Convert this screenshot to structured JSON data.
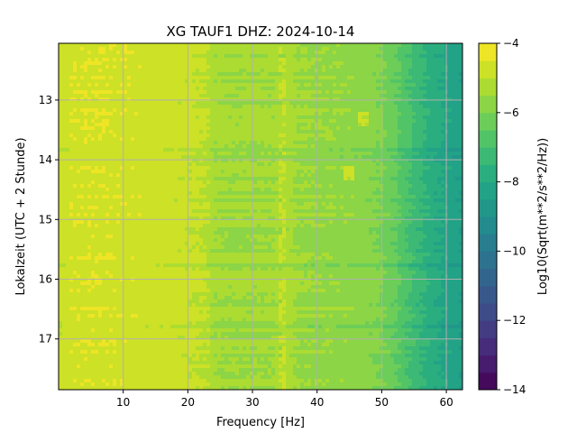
{
  "chart_data": {
    "type": "heatmap",
    "title": "XG TAUF1  DHZ: 2024-10-14",
    "xlabel": "Frequency [Hz]",
    "ylabel": "Lokalzeit (UTC + 2 Stunde)",
    "x_ticks": [
      10,
      20,
      30,
      40,
      50,
      60
    ],
    "y_ticks": [
      13,
      14,
      15,
      16,
      17
    ],
    "xlim": [
      0,
      62.5
    ],
    "ylim": [
      17.85,
      12.05
    ],
    "y_inverted": true,
    "grid": true,
    "colormap": "viridis",
    "colorbar": {
      "label": "Log10(Sqrt(m**2/s**2/Hz))",
      "range": [
        -14,
        -4
      ],
      "ticks": [
        -4,
        -6,
        -8,
        -10,
        -12,
        -14
      ],
      "levels": 20
    },
    "profile": {
      "frequency_hz": [
        0,
        2,
        5,
        10,
        15,
        20,
        23,
        24,
        27,
        30,
        33,
        35,
        37,
        40,
        42,
        45,
        48,
        50,
        52,
        54,
        56,
        58,
        60,
        62.5
      ],
      "log10_amplitude": [
        -4.9,
        -4.6,
        -4.55,
        -4.6,
        -4.7,
        -4.9,
        -5.0,
        -5.4,
        -5.45,
        -5.45,
        -5.45,
        -5.2,
        -5.5,
        -5.55,
        -5.6,
        -5.65,
        -5.8,
        -6.0,
        -6.4,
        -6.9,
        -7.4,
        -7.8,
        -8.1,
        -8.4
      ]
    },
    "noise_features": [
      {
        "frequency_hz": 34.5,
        "type": "persistent line"
      },
      {
        "frequency_hz": 47,
        "time_hour": 13.3,
        "type": "spot"
      },
      {
        "frequency_hz": 45,
        "time_hour": 14.2,
        "type": "spot"
      }
    ]
  }
}
